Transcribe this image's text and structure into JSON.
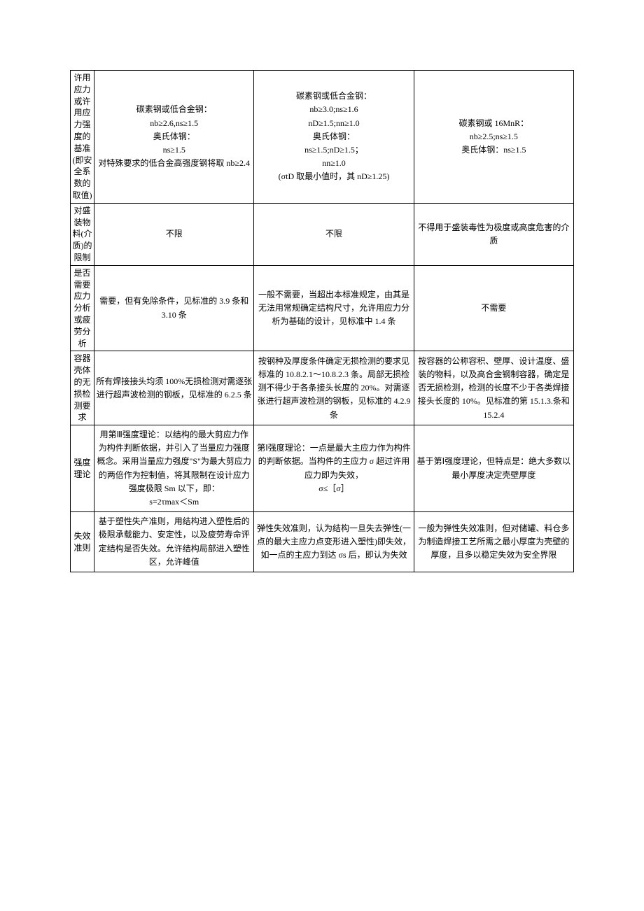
{
  "table": {
    "rows": [
      {
        "header": "许用应力或许用应力强度的基准(即安全系数的取值)",
        "col1": "碳素钢或低合金钢：\nnb≥2.6,ns≥1.5\n奥氏体钢：\nns≥1.5\n对特殊要求的低合金高强度钢将取 nb≥2.4",
        "col2": "碳素钢或低合金钢：\nnb≥3.0;ns≥1.6\nnD≥1.5;nn≥1.0\n奥氏体钢：\nns≥1.5;nD≥1.5；\nnn≥1.0\n(σtD 取最小值时，其 nD≥1.25)",
        "col3": "碳素钢或 16MnR：\nnb≥2.5;ns≥1.5\n奥氏体钢：ns≥1.5"
      },
      {
        "header": "对盛装物料(介质)的限制",
        "col1": "不限",
        "col2": "不限",
        "col3": "不得用于盛装毒性为极度或高度危害的介质"
      },
      {
        "header": "是否需要应力分析或疲劳分析",
        "col1": "需要，但有免除条件，见标准的 3.9 条和 3.10 条",
        "col2": "一般不需要，当超出本标准规定，由其是无法用常规确定结构尺寸，允许用应力分析为基础的设计，见标准中 1.4 条",
        "col3": "不需要"
      },
      {
        "header": "容器壳体的无损检测要求",
        "col1": "所有焊接接头均须 100%无损检测对需逐张进行超声波检测的钢板，见标准的 6.2.5 条",
        "col2": "按钢种及厚度条件确定无损检测的要求见标准的 10.8.2.1～10.8.2.3 条。局部无损检测不得少于各条接头长度的 20%。对需逐张进行超声波检测的钢板，见标准的 4.2.9 条",
        "col3": "按容器的公称容积、壁厚、设计温度、盛装的物料，以及高合金钢制容器，确定是否无损检测，检测的长度不少于各类焊接接头长度的 10%。见标准的第 15.1.3.条和 15.2.4"
      },
      {
        "header": "强度理论",
        "col1": "用第Ⅲ强度理论：以结构的最大剪应力作为构件判断依据，并引入了当量应力强度概念。采用当量应力强度\"S\"为最大剪应力的两倍作为控制值，将其限制在设计应力强度极限 Sm 以下，即：\ns=2τmax＜Sm",
        "col2": "第Ⅰ强度理论：一点是最大主应力作为构件的判断依据。当构件的主应力 σ 超过许用应力即为失效，\nσ≤［σ］",
        "col3": "基于第Ⅰ强度理论，但特点是：绝大多数以最小厚度决定壳壁厚度"
      },
      {
        "header": "失效准则",
        "col1": "基于塑性失产准则，用结构进入塑性后的极限承载能力、安定性，以及疲劳寿命评定结构是否失效。允许结构局部进入塑性区，允许峰值",
        "col2": "弹性失效准则，认为结构一旦失去弹性(一点的最大主应力点变形进入塑性)即失效，如一点的主应力到达 σs 后，即认为失效",
        "col3": "一般为弹性失效准则，但对储罐、料仓多为制造焊接工艺所需之最小厚度为壳壁的厚度，且多以稳定失效为安全界限"
      }
    ]
  }
}
